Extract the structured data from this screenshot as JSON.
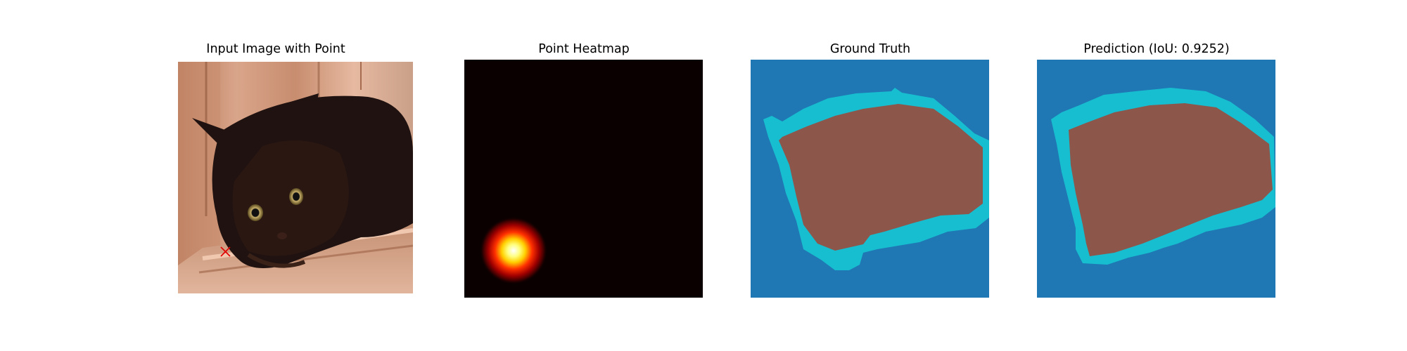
{
  "titles": {
    "input": "Input Image with Point",
    "heatmap": "Point Heatmap",
    "ground_truth": "Ground Truth",
    "prediction": "Prediction (IoU: 0.9252)"
  },
  "colors": {
    "background_class": "#1f77b4",
    "boundary_class": "#17becf",
    "object_class": "#8c564b",
    "heatmap_low": "#0b0000",
    "point_marker": "#e00000"
  },
  "icons": {
    "point_marker": "x-mark-icon"
  }
}
